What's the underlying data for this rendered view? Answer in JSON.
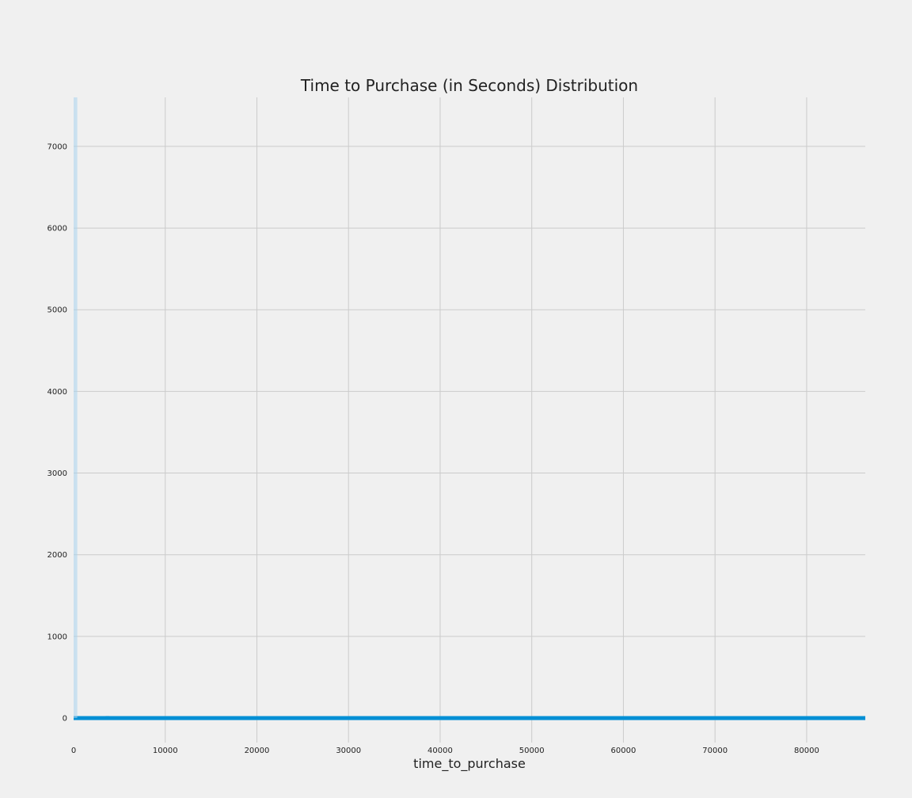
{
  "chart_data": {
    "type": "bar",
    "title": "Time to Purchase (in Seconds) Distribution",
    "xlabel": "time_to_purchase",
    "ylabel": "",
    "xlim": [
      0,
      86400
    ],
    "ylim": [
      -300,
      7600
    ],
    "grid": true,
    "bar_color": "#008fd5",
    "x_ticks": [
      0,
      10000,
      20000,
      30000,
      40000,
      50000,
      60000,
      70000,
      80000
    ],
    "y_ticks": [
      0,
      1000,
      2000,
      3000,
      4000,
      5000,
      6000,
      7000
    ],
    "x_tick_labels": [
      "0",
      "10000",
      "20000",
      "30000",
      "40000",
      "50000",
      "60000",
      "70000",
      "80000"
    ],
    "y_tick_labels": [
      "0",
      "1000",
      "2000",
      "3000",
      "4000",
      "5000",
      "6000",
      "7000"
    ],
    "bins": [
      {
        "x": 0,
        "value": 7600
      },
      {
        "x": 2000,
        "value": 20
      },
      {
        "x": 3500,
        "value": 25
      },
      {
        "x": 6500,
        "value": 15
      },
      {
        "x": 9500,
        "value": 12
      },
      {
        "x": 12500,
        "value": 10
      },
      {
        "x": 15500,
        "value": 18
      },
      {
        "x": 19500,
        "value": 15
      },
      {
        "x": 23500,
        "value": 10
      },
      {
        "x": 27500,
        "value": 8
      },
      {
        "x": 31500,
        "value": 12
      },
      {
        "x": 36500,
        "value": 10
      },
      {
        "x": 40500,
        "value": 8
      },
      {
        "x": 45000,
        "value": 14
      },
      {
        "x": 49500,
        "value": 10
      },
      {
        "x": 54000,
        "value": 12
      },
      {
        "x": 58500,
        "value": 10
      },
      {
        "x": 63000,
        "value": 8
      },
      {
        "x": 67500,
        "value": 12
      },
      {
        "x": 72000,
        "value": 10
      },
      {
        "x": 76500,
        "value": 8
      },
      {
        "x": 81000,
        "value": 10
      },
      {
        "x": 85500,
        "value": 8
      }
    ]
  }
}
